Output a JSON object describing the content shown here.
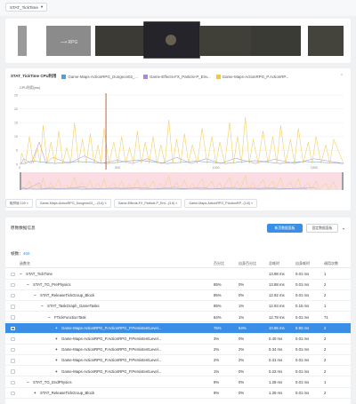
{
  "stat_dropdown": {
    "label": "STAT_TickTime"
  },
  "chart": {
    "legend_title": "STAT_TickTime CPU利用",
    "series": [
      {
        "name": "Game-Maps-ActionRPG_Dungeon02_...",
        "color": "#5b9bd5"
      },
      {
        "name": "Game-Effects-FX_Particle-P_Env...",
        "color": "#a78bd6"
      },
      {
        "name": "Game-Maps-ActionRPG_P.ActionRP...",
        "color": "#f2c744"
      }
    ],
    "ylabel": "CPU利用(ms)"
  },
  "chart_data": {
    "type": "line",
    "ylabel": "CPU利用(ms)",
    "x_ticks": [
      "0",
      "500",
      "1000",
      "1500"
    ],
    "xlim": [
      0,
      1650
    ],
    "y_ticks": [
      "25",
      "20",
      "15",
      "10",
      "5",
      "0"
    ],
    "ylim": [
      0,
      25
    ],
    "marker_x": 440,
    "series": [
      {
        "name": "Game-Maps-ActionRPG_Dungeon02_...",
        "color": "#5b9bd5",
        "peaks": [
          [
            60,
            1.2
          ],
          [
            300,
            1.0
          ],
          [
            600,
            1.5
          ],
          [
            900,
            1.1
          ],
          [
            1200,
            1.3
          ],
          [
            1450,
            1.0
          ]
        ]
      },
      {
        "name": "Game-Effects-FX_Particle-P_Env...",
        "color": "#a78bd6",
        "peaks": [
          [
            20,
            2.0
          ],
          [
            100,
            8.0
          ],
          [
            170,
            2.5
          ],
          [
            330,
            3.0
          ],
          [
            500,
            1.5
          ],
          [
            650,
            2.0
          ],
          [
            800,
            2.5
          ],
          [
            950,
            2.0
          ],
          [
            1100,
            2.2
          ],
          [
            1300,
            1.8
          ],
          [
            1500,
            2.0
          ]
        ]
      },
      {
        "name": "Game-Maps-ActionRPG_P.ActionRP...",
        "color": "#f2c744",
        "peaks": [
          [
            10,
            4
          ],
          [
            50,
            10
          ],
          [
            90,
            6
          ],
          [
            120,
            14
          ],
          [
            160,
            8
          ],
          [
            200,
            12
          ],
          [
            240,
            6
          ],
          [
            280,
            15
          ],
          [
            320,
            9
          ],
          [
            360,
            11
          ],
          [
            400,
            7
          ],
          [
            430,
            13
          ],
          [
            480,
            8
          ],
          [
            520,
            10
          ],
          [
            560,
            6
          ],
          [
            600,
            12
          ],
          [
            640,
            8
          ],
          [
            680,
            10
          ],
          [
            720,
            7
          ],
          [
            760,
            16
          ],
          [
            800,
            9
          ],
          [
            840,
            11
          ],
          [
            880,
            7
          ],
          [
            930,
            13
          ],
          [
            980,
            10
          ],
          [
            1020,
            8
          ],
          [
            1070,
            15
          ],
          [
            1110,
            10
          ],
          [
            1150,
            17
          ],
          [
            1190,
            9
          ],
          [
            1240,
            12
          ],
          [
            1290,
            10
          ],
          [
            1330,
            14
          ],
          [
            1380,
            9
          ],
          [
            1420,
            13
          ],
          [
            1470,
            8
          ],
          [
            1510,
            10
          ],
          [
            1560,
            7
          ],
          [
            1600,
            9
          ]
        ]
      }
    ]
  },
  "tags": [
    "取样帧 100 ×",
    "Game-Maps-ActionRPG_Dungeon02_...(3.6) ×",
    "Game-Effects-FX_Particle-P_Env...(3.6) ×",
    "Game-Maps-ActionRPG_P.ActionRP...(3.6) ×"
  ],
  "table": {
    "title": "原数数据信息",
    "primary_button": "新页数据面板",
    "secondary_button": "固定数据面板",
    "frame_count_label": "帧数：",
    "frame_count_value": "450",
    "columns": [
      "函数名",
      "百分比",
      "自身百分比",
      "总耗时",
      "自身耗时",
      "调用次数"
    ],
    "rows": [
      {
        "name": "STAT_TickTime",
        "indent": 0,
        "expander": "−",
        "pct": "",
        "self_pct": "",
        "total": "13.98 ms",
        "self": "0.01 ms",
        "calls": "1",
        "selected": false
      },
      {
        "name": "STAT_TG_PrePhysics",
        "indent": 1,
        "expander": "−",
        "pct": "85%",
        "self_pct": "0%",
        "total": "13.88 ms",
        "self": "0.01 ms",
        "calls": "2",
        "selected": false
      },
      {
        "name": "STAT_ReleaseTickGroup_Block",
        "indent": 2,
        "expander": "−",
        "pct": "85%",
        "self_pct": "0%",
        "total": "12.92 ms",
        "self": "0.01 ms",
        "calls": "2",
        "selected": false
      },
      {
        "name": "STAT_TaskGraph_GameTasks",
        "indent": 3,
        "expander": "−",
        "pct": "85%",
        "self_pct": "1%",
        "total": "12.93 ms",
        "self": "0.15 ms",
        "calls": "1",
        "selected": false
      },
      {
        "name": "FTickFunctionTask",
        "indent": 4,
        "expander": "−",
        "pct": "84%",
        "self_pct": "1%",
        "total": "12.78 ms",
        "self": "0.01 ms",
        "calls": "71",
        "selected": false
      },
      {
        "name": "Game-Maps-ActionRPG_P.ActionRPG_P.PersistentLevel...",
        "indent": 5,
        "expander": "+",
        "pct": "75%",
        "self_pct": "54%",
        "total": "10.86 ms",
        "self": "9.93 ms",
        "calls": "2",
        "selected": true
      },
      {
        "name": "Game-Maps-ActionRPG_P.ActionRPG_P.PersistentLevel...",
        "indent": 5,
        "expander": "+",
        "pct": "3%",
        "self_pct": "0%",
        "total": "0.40 ms",
        "self": "0.01 ms",
        "calls": "2",
        "selected": false
      },
      {
        "name": "Game-Maps-ActionRPG_P.ActionRPG_P.PersistentLevel...",
        "indent": 5,
        "expander": "+",
        "pct": "2%",
        "self_pct": "2%",
        "total": "0.34 ms",
        "self": "0.01 ms",
        "calls": "2",
        "selected": false
      },
      {
        "name": "Game-Maps-ActionRPG_P.ActionRPG_P.PersistentLevel...",
        "indent": 5,
        "expander": "+",
        "pct": "2%",
        "self_pct": "2%",
        "total": "0.31 ms",
        "self": "0.01 ms",
        "calls": "2",
        "selected": false
      },
      {
        "name": "Game-Maps-ActionRPG_P.ActionRPG_P.PersistentLevel...",
        "indent": 5,
        "expander": "+",
        "pct": "1%",
        "self_pct": "0%",
        "total": "0.22 ms",
        "self": "0.01 ms",
        "calls": "2",
        "selected": false
      },
      {
        "name": "STAT_TG_EndPhysics",
        "indent": 1,
        "expander": "−",
        "pct": "9%",
        "self_pct": "0%",
        "total": "1.28 ms",
        "self": "0.01 ms",
        "calls": "1",
        "selected": false
      },
      {
        "name": "STAT_ReleaseTickGroup_Block",
        "indent": 2,
        "expander": "+",
        "pct": "9%",
        "self_pct": "0%",
        "total": "1.26 ms",
        "self": "0.01 ms",
        "calls": "2",
        "selected": false
      }
    ]
  }
}
